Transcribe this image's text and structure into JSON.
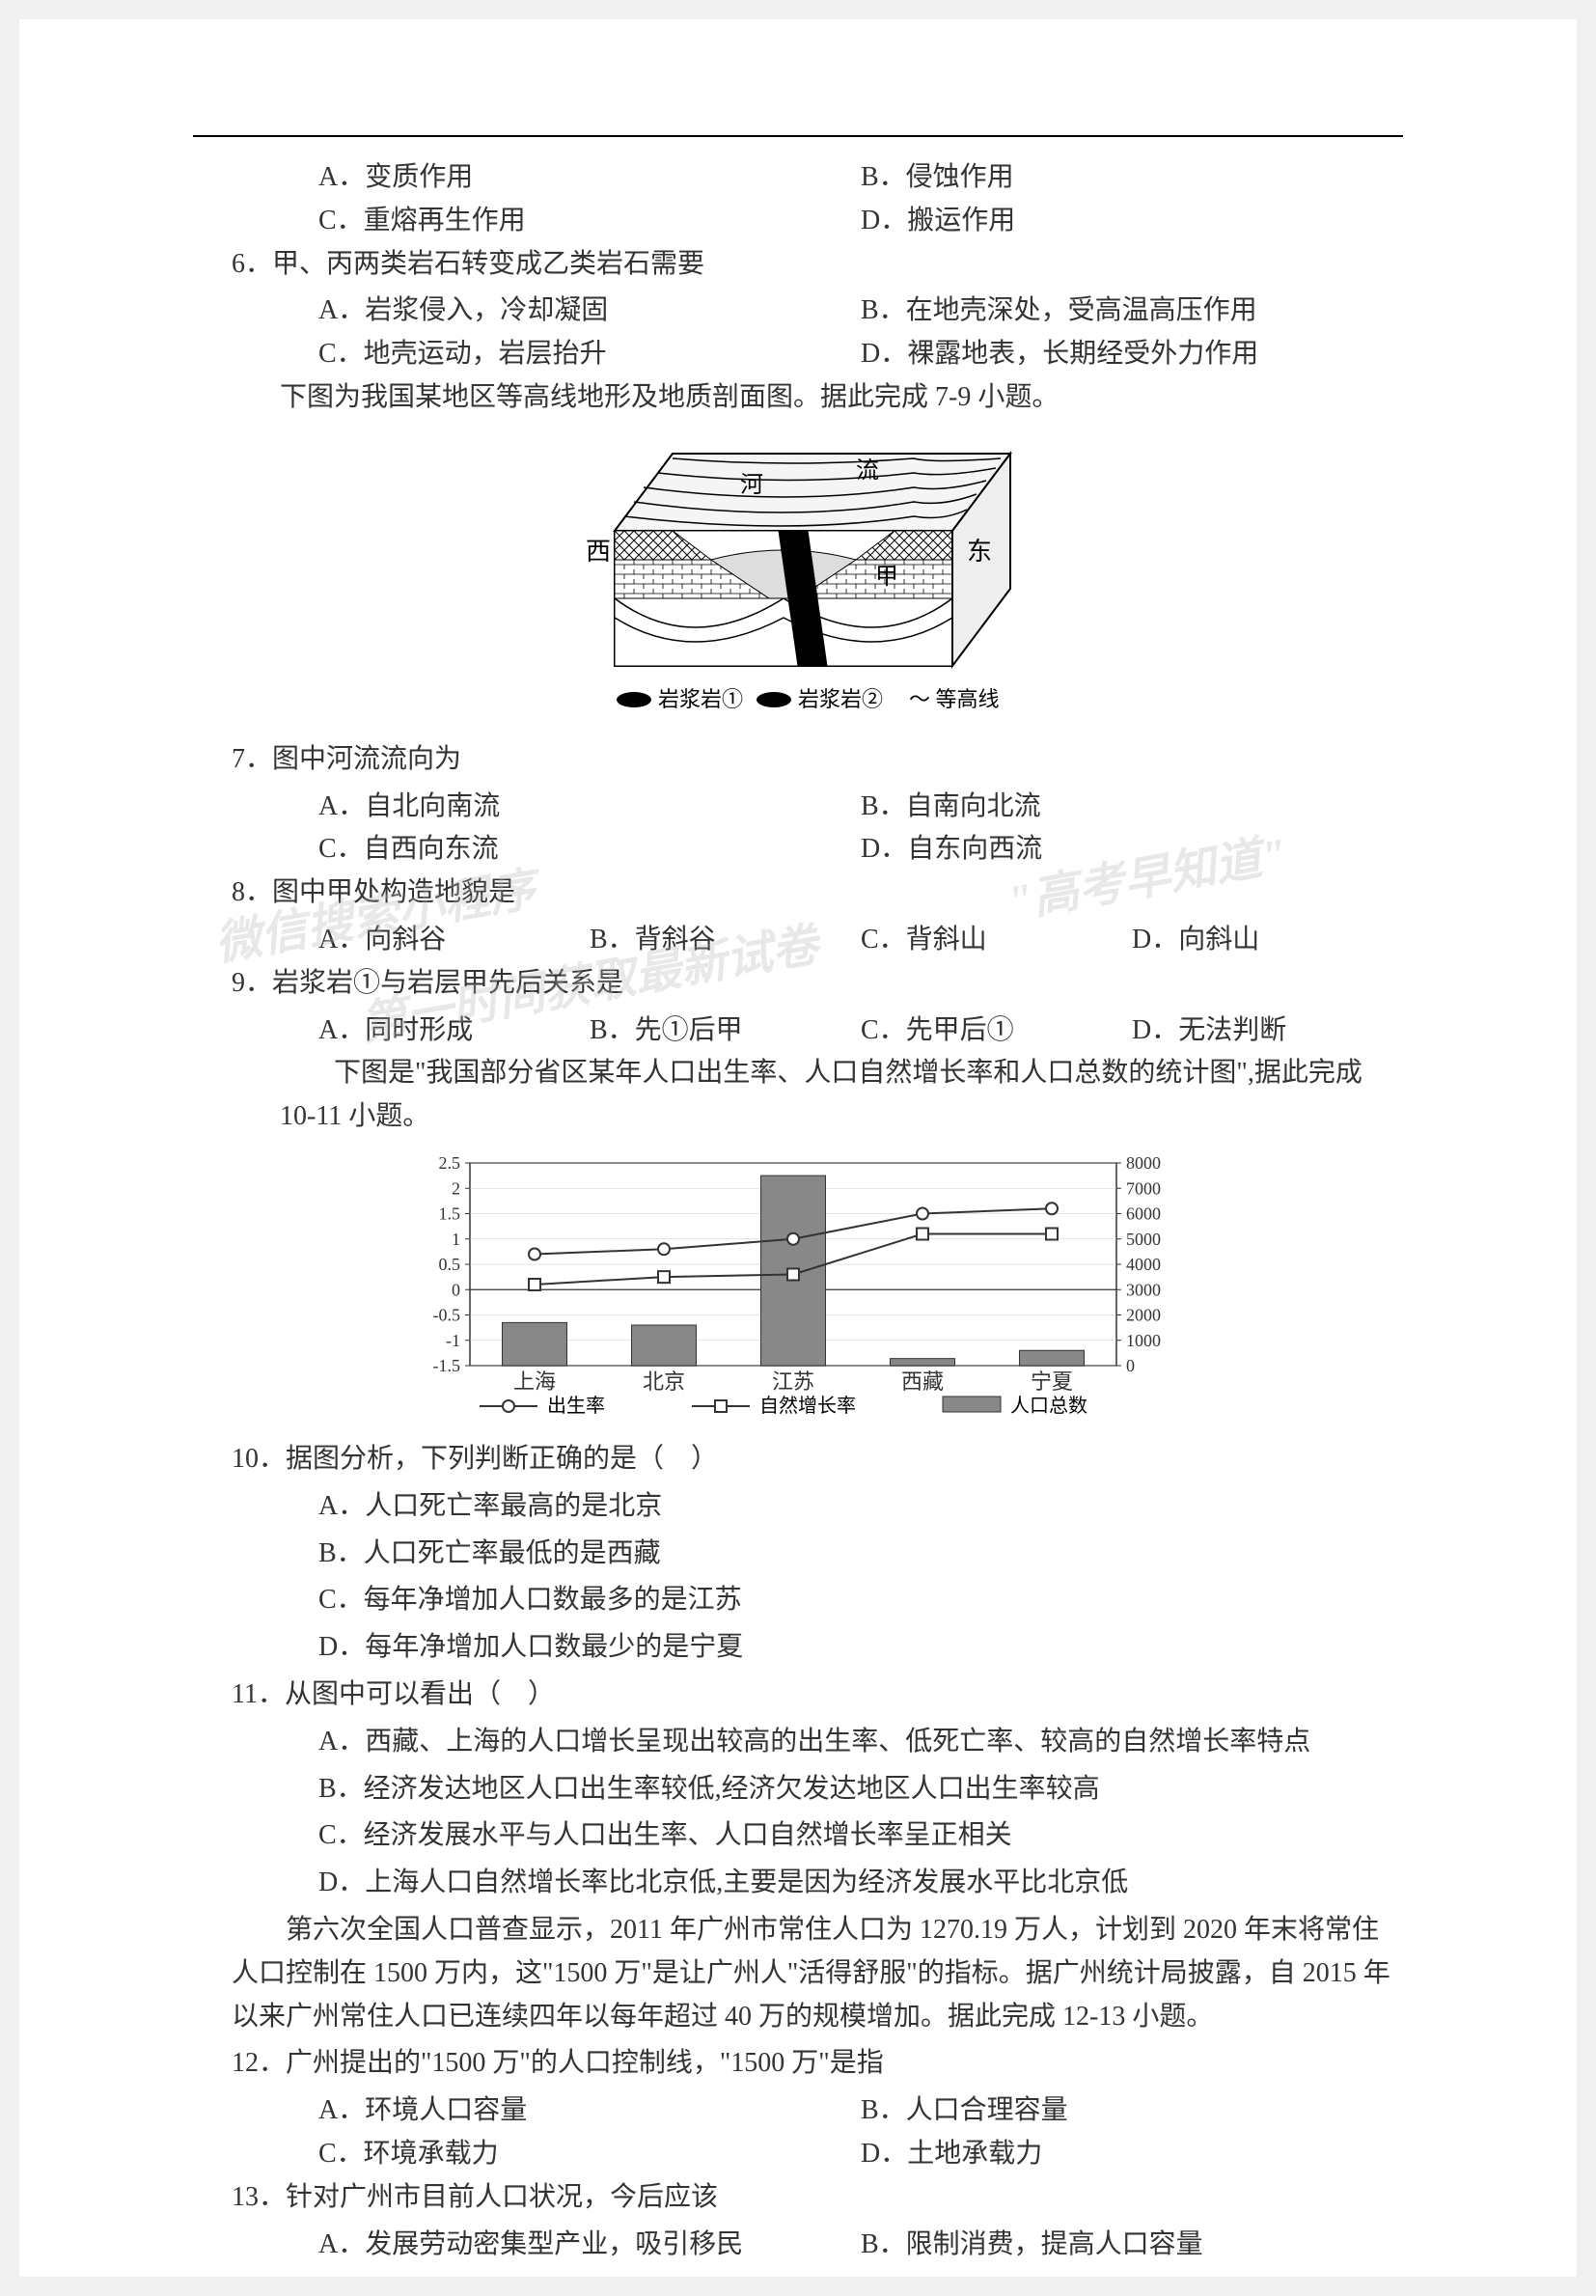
{
  "q5_options": {
    "a": "A．变质作用",
    "b": "B．侵蚀作用",
    "c": "C．重熔再生作用",
    "d": "D．搬运作用"
  },
  "q6": {
    "stem": "6．甲、丙两类岩石转变成乙类岩石需要",
    "a": "A．岩浆侵入，冷却凝固",
    "b": "B．在地壳深处，受高温高压作用",
    "c": "C．地壳运动，岩层抬升",
    "d": "D．裸露地表，长期经受外力作用"
  },
  "intro_7_9": "下图为我国某地区等高线地形及地质剖面图。据此完成 7-9 小题。",
  "geology_diagram": {
    "labels": {
      "west": "西",
      "east": "东",
      "river": "河",
      "flow": "流",
      "jia": "甲"
    },
    "caption_parts": [
      "岩浆岩①",
      "岩浆岩②",
      "～ 等高线"
    ]
  },
  "q7": {
    "stem": "7．图中河流流向为",
    "a": "A．自北向南流",
    "b": "B．自南向北流",
    "c": "C．自西向东流",
    "d": "D．自东向西流"
  },
  "q8": {
    "stem": "8．图中甲处构造地貌是",
    "a": "A．向斜谷",
    "b": "B．背斜谷",
    "c": "C．背斜山",
    "d": "D．向斜山"
  },
  "q9": {
    "stem": "9．岩浆岩①与岩层甲先后关系是",
    "a": "A．同时形成",
    "b": "B．先①后甲",
    "c": "C．先甲后①",
    "d": "D．无法判断"
  },
  "intro_10_11": "下图是\"我国部分省区某年人口出生率、人口自然增长率和人口总数的统计图\",据此完成 10-11 小题。",
  "chart": {
    "type": "combo-bar-line",
    "categories": [
      "上海",
      "北京",
      "江苏",
      "西藏",
      "宁夏"
    ],
    "left_axis": {
      "min": -1.5,
      "max": 2.5,
      "step": 0.5,
      "label": "%"
    },
    "right_axis": {
      "min": 0,
      "max": 8000,
      "step": 1000
    },
    "birth_rate": [
      0.7,
      0.8,
      1.0,
      1.5,
      1.6
    ],
    "growth_rate": [
      0.1,
      0.25,
      0.3,
      1.1,
      1.1
    ],
    "population": [
      1700,
      1600,
      7500,
      280,
      600
    ],
    "series": {
      "birth": "出生率",
      "growth": "自然增长率",
      "pop": "人口总数"
    },
    "colors": {
      "axis": "#333333",
      "grid": "#cccccc",
      "bar_fill": "#888888",
      "line": "#333333",
      "marker_fill": "#ffffff"
    }
  },
  "q10": {
    "stem": "10．据图分析，下列判断正确的是（　）",
    "a": "A．人口死亡率最高的是北京",
    "b": "B．人口死亡率最低的是西藏",
    "c": "C．每年净增加人口数最多的是江苏",
    "d": "D．每年净增加人口数最少的是宁夏"
  },
  "q11": {
    "stem": "11．从图中可以看出（　）",
    "a": "A．西藏、上海的人口增长呈现出较高的出生率、低死亡率、较高的自然增长率特点",
    "b": "B．经济发达地区人口出生率较低,经济欠发达地区人口出生率较高",
    "c": "C．经济发展水平与人口出生率、人口自然增长率呈正相关",
    "d": "D．上海人口自然增长率比北京低,主要是因为经济发展水平比北京低"
  },
  "intro_12_13": "第六次全国人口普查显示，2011 年广州市常住人口为 1270.19 万人，计划到 2020 年末将常住人口控制在 1500 万内，这\"1500 万\"是让广州人\"活得舒服\"的指标。据广州统计局披露，自 2015 年以来广州常住人口已连续四年以每年超过 40 万的规模增加。据此完成 12-13 小题。",
  "q12": {
    "stem": "12．广州提出的\"1500 万\"的人口控制线，\"1500 万\"是指",
    "a": "A．环境人口容量",
    "b": "B．人口合理容量",
    "c": "C．环境承载力",
    "d": "D．土地承载力"
  },
  "q13": {
    "stem": "13．针对广州市目前人口状况，今后应该",
    "a": "A．发展劳动密集型产业，吸引移民",
    "b": "B．限制消费，提高人口容量"
  },
  "watermarks": {
    "wm1": "微信搜索小程序",
    "wm2": "\"高考早知道\"",
    "wm3": "第一时间获取最新试卷"
  }
}
